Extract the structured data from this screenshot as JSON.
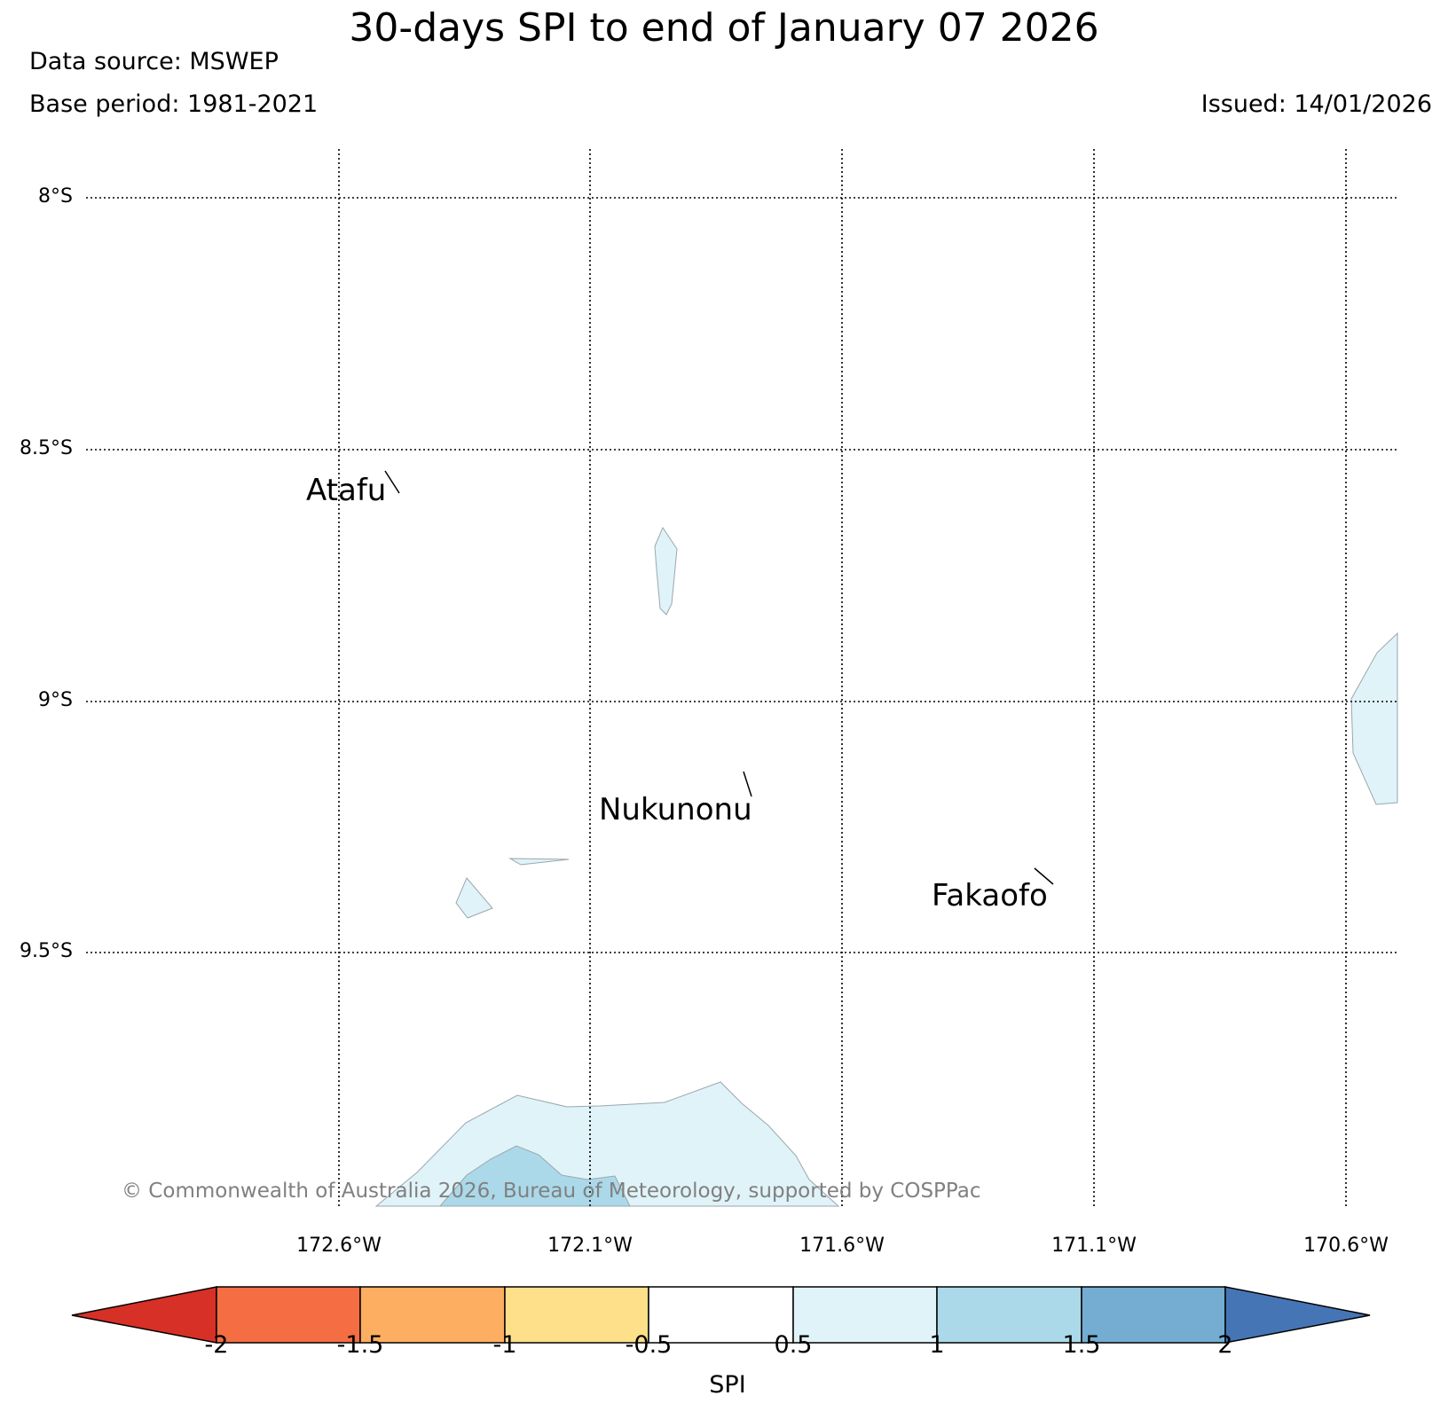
{
  "header": {
    "title": "30-days SPI to end of January 07 2026",
    "data_source": "Data source: MSWEP",
    "base_period": "Base period: 1981-2021",
    "issued": "Issued: 14/01/2026"
  },
  "map": {
    "lat_labels": [
      "8°S",
      "8.5°S",
      "9°S",
      "9.5°S"
    ],
    "lon_labels": [
      "172.6°W",
      "172.1°W",
      "171.6°W",
      "171.1°W",
      "170.6°W"
    ],
    "places": [
      "Atafu",
      "Nukunonu",
      "Fakaofo"
    ],
    "copyright": "© Commonwealth of Australia 2026, Bureau of Meteorology, supported by COSPPac"
  },
  "colorbar": {
    "label": "SPI",
    "ticks": [
      "-2",
      "-1.5",
      "-1",
      "-0.5",
      "0.5",
      "1",
      "1.5",
      "2"
    ],
    "colors": [
      "#d73027",
      "#f46d43",
      "#fdae61",
      "#fee08b",
      "#ffffff",
      "#e0f3f8",
      "#abd9e9",
      "#74add1",
      "#4575b4"
    ]
  },
  "legend_colors": {
    "light_wet": "#e0f3f8",
    "mid_wet": "#abd9e9"
  }
}
